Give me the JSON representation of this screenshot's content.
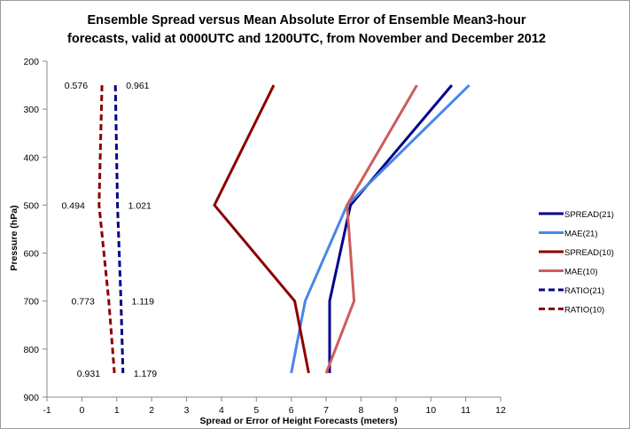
{
  "chart_data": {
    "type": "line",
    "title_line1": "Ensemble Spread versus Mean Absolute Error of Ensemble Mean3-hour",
    "title_line2": "forecasts, valid at 0000UTC and 1200UTC, from November and December 2012",
    "xlabel": "Spread or Error of Height Forecasts (meters)",
    "ylabel": "Pressure (hPa)",
    "xlim": [
      -1,
      12
    ],
    "ylim": [
      200,
      900
    ],
    "y_inverted": true,
    "x_ticks": [
      -1,
      0,
      1,
      2,
      3,
      4,
      5,
      6,
      7,
      8,
      9,
      10,
      11,
      12
    ],
    "y_ticks": [
      200,
      300,
      400,
      500,
      600,
      700,
      800,
      900
    ],
    "legend_position": "right",
    "grid": false,
    "series": [
      {
        "name": "SPREAD(21)",
        "color": "#00008b",
        "dash": false,
        "points": [
          [
            10.6,
            250
          ],
          [
            7.7,
            500
          ],
          [
            7.1,
            700
          ],
          [
            7.1,
            850
          ]
        ]
      },
      {
        "name": "MAE(21)",
        "color": "#4a86e8",
        "dash": false,
        "points": [
          [
            11.1,
            250
          ],
          [
            7.6,
            500
          ],
          [
            6.4,
            700
          ],
          [
            6.0,
            850
          ]
        ]
      },
      {
        "name": "SPREAD(10)",
        "color": "#8b0000",
        "dash": false,
        "points": [
          [
            5.5,
            250
          ],
          [
            3.8,
            500
          ],
          [
            6.1,
            700
          ],
          [
            6.5,
            850
          ]
        ]
      },
      {
        "name": "MAE(10)",
        "color": "#cd5c5c",
        "dash": false,
        "points": [
          [
            9.6,
            250
          ],
          [
            7.6,
            500
          ],
          [
            7.8,
            700
          ],
          [
            7.0,
            850
          ]
        ]
      },
      {
        "name": "RATIO(21)",
        "color": "#00008b",
        "dash": true,
        "points": [
          [
            0.961,
            250
          ],
          [
            1.021,
            500
          ],
          [
            1.119,
            700
          ],
          [
            1.179,
            850
          ]
        ]
      },
      {
        "name": "RATIO(10)",
        "color": "#8b0000",
        "dash": true,
        "points": [
          [
            0.576,
            250
          ],
          [
            0.494,
            500
          ],
          [
            0.773,
            700
          ],
          [
            0.931,
            850
          ]
        ]
      }
    ],
    "annotations": [
      {
        "text": "0.576",
        "x": 0.576,
        "y": 250,
        "side": "left"
      },
      {
        "text": "0.961",
        "x": 0.961,
        "y": 250,
        "side": "right"
      },
      {
        "text": "0.494",
        "x": 0.494,
        "y": 500,
        "side": "left"
      },
      {
        "text": "1.021",
        "x": 1.021,
        "y": 500,
        "side": "right"
      },
      {
        "text": "0.773",
        "x": 0.773,
        "y": 700,
        "side": "left"
      },
      {
        "text": "1.119",
        "x": 1.119,
        "y": 700,
        "side": "right"
      },
      {
        "text": "0.931",
        "x": 0.931,
        "y": 850,
        "side": "left"
      },
      {
        "text": "1.179",
        "x": 1.179,
        "y": 850,
        "side": "right"
      }
    ]
  }
}
